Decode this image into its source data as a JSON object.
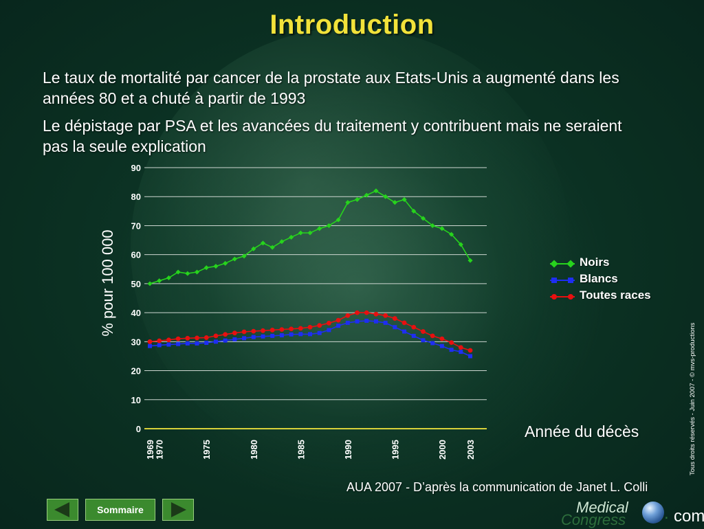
{
  "slide": {
    "title": "Introduction",
    "paragraphs": [
      "Le taux de mortalité par cancer de la prostate aux Etats-Unis a augmenté dans les années 80 et a chuté à partir de 1993",
      "Le dépistage par PSA et les avancées du traitement y contribuent mais ne seraient pas la seule explication"
    ],
    "x_axis_title": "Année du décès",
    "source": "AUA 2007 - D’après la communication de Janet L. Colli",
    "copyright": "Tous droits réservés - Juin 2007 - © mvs-productions"
  },
  "nav": {
    "menu_label": "Sommaire",
    "prev_icon": "left-arrow-icon",
    "next_icon": "right-arrow-icon"
  },
  "logo": {
    "line1": "Medical",
    "line2": "Congress",
    "dot": ".",
    "tld": "com"
  },
  "colors": {
    "title": "#f2e23a",
    "noirs": "#27d31d",
    "blancs": "#1e2ef2",
    "toutes": "#e81010",
    "nav_button": "#3b8a2e"
  },
  "chart_data": {
    "type": "line",
    "ylabel": "% pour 100 000",
    "xlabel": "Année du décès",
    "ylim": [
      0,
      90
    ],
    "yticks": [
      0,
      10,
      20,
      30,
      40,
      50,
      60,
      70,
      80,
      90
    ],
    "xlim": [
      1969,
      2003
    ],
    "xticks": [
      1969,
      1970,
      1975,
      1980,
      1985,
      1990,
      1995,
      2000,
      2003
    ],
    "grid": true,
    "legend_position": "right",
    "x": [
      1969,
      1970,
      1971,
      1972,
      1973,
      1974,
      1975,
      1976,
      1977,
      1978,
      1979,
      1980,
      1981,
      1982,
      1983,
      1984,
      1985,
      1986,
      1987,
      1988,
      1989,
      1990,
      1991,
      1992,
      1993,
      1994,
      1995,
      1996,
      1997,
      1998,
      1999,
      2000,
      2001,
      2002,
      2003
    ],
    "series": [
      {
        "name": "Noirs",
        "color": "#27d31d",
        "marker": "diamond",
        "values": [
          50,
          51,
          52,
          54,
          53.5,
          54,
          55.5,
          56,
          57,
          58.5,
          59.5,
          62,
          64,
          62.5,
          64.5,
          66,
          67.5,
          67.5,
          69,
          70,
          72,
          78,
          79,
          80.5,
          82,
          80,
          78,
          79,
          75,
          72.5,
          70,
          69,
          67,
          63.5,
          58
        ]
      },
      {
        "name": "Blancs",
        "color": "#1e2ef2",
        "marker": "square",
        "values": [
          28.5,
          28.8,
          29,
          29.2,
          29.4,
          29.4,
          29.6,
          30,
          30.4,
          30.8,
          31.2,
          31.6,
          31.8,
          32,
          32.2,
          32.5,
          32.6,
          32.6,
          33,
          34,
          35.5,
          36.5,
          37,
          37.2,
          37,
          36.5,
          35,
          33.5,
          32,
          30.5,
          29.5,
          28.5,
          27.2,
          26.5,
          25
        ]
      },
      {
        "name": "Toutes races",
        "color": "#e81010",
        "marker": "circle",
        "values": [
          30,
          30.3,
          30.6,
          31,
          31.2,
          31.3,
          31.4,
          32,
          32.5,
          33,
          33.4,
          33.6,
          33.8,
          34,
          34.2,
          34.4,
          34.6,
          35,
          35.6,
          36.4,
          37.4,
          39,
          40,
          40,
          39.5,
          39,
          38,
          36.5,
          35,
          33.5,
          32,
          31,
          29.7,
          28,
          27
        ]
      }
    ]
  }
}
